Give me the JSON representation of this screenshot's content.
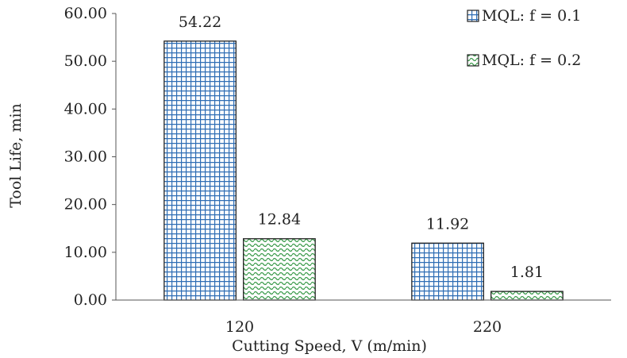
{
  "chart_data": {
    "type": "bar",
    "title": "",
    "xlabel": "Cutting Speed, V (m/min)",
    "ylabel": "Tool Life, min",
    "categories": [
      "120",
      "220"
    ],
    "series": [
      {
        "name": "MQL: f = 0.1",
        "values": [
          54.22,
          11.92
        ],
        "value_labels": [
          "54.22",
          "11.92"
        ],
        "color": "#2e6db4",
        "pattern": "grid"
      },
      {
        "name": "MQL: f = 0.2",
        "values": [
          12.84,
          1.81
        ],
        "value_labels": [
          "12.84",
          "1.81"
        ],
        "color": "#3a9a4a",
        "pattern": "wave"
      }
    ],
    "ylim": [
      0,
      60
    ],
    "yticks": [
      "0.00",
      "10.00",
      "20.00",
      "30.00",
      "40.00",
      "50.00",
      "60.00"
    ],
    "grid": false,
    "legend_position": "top-right"
  }
}
